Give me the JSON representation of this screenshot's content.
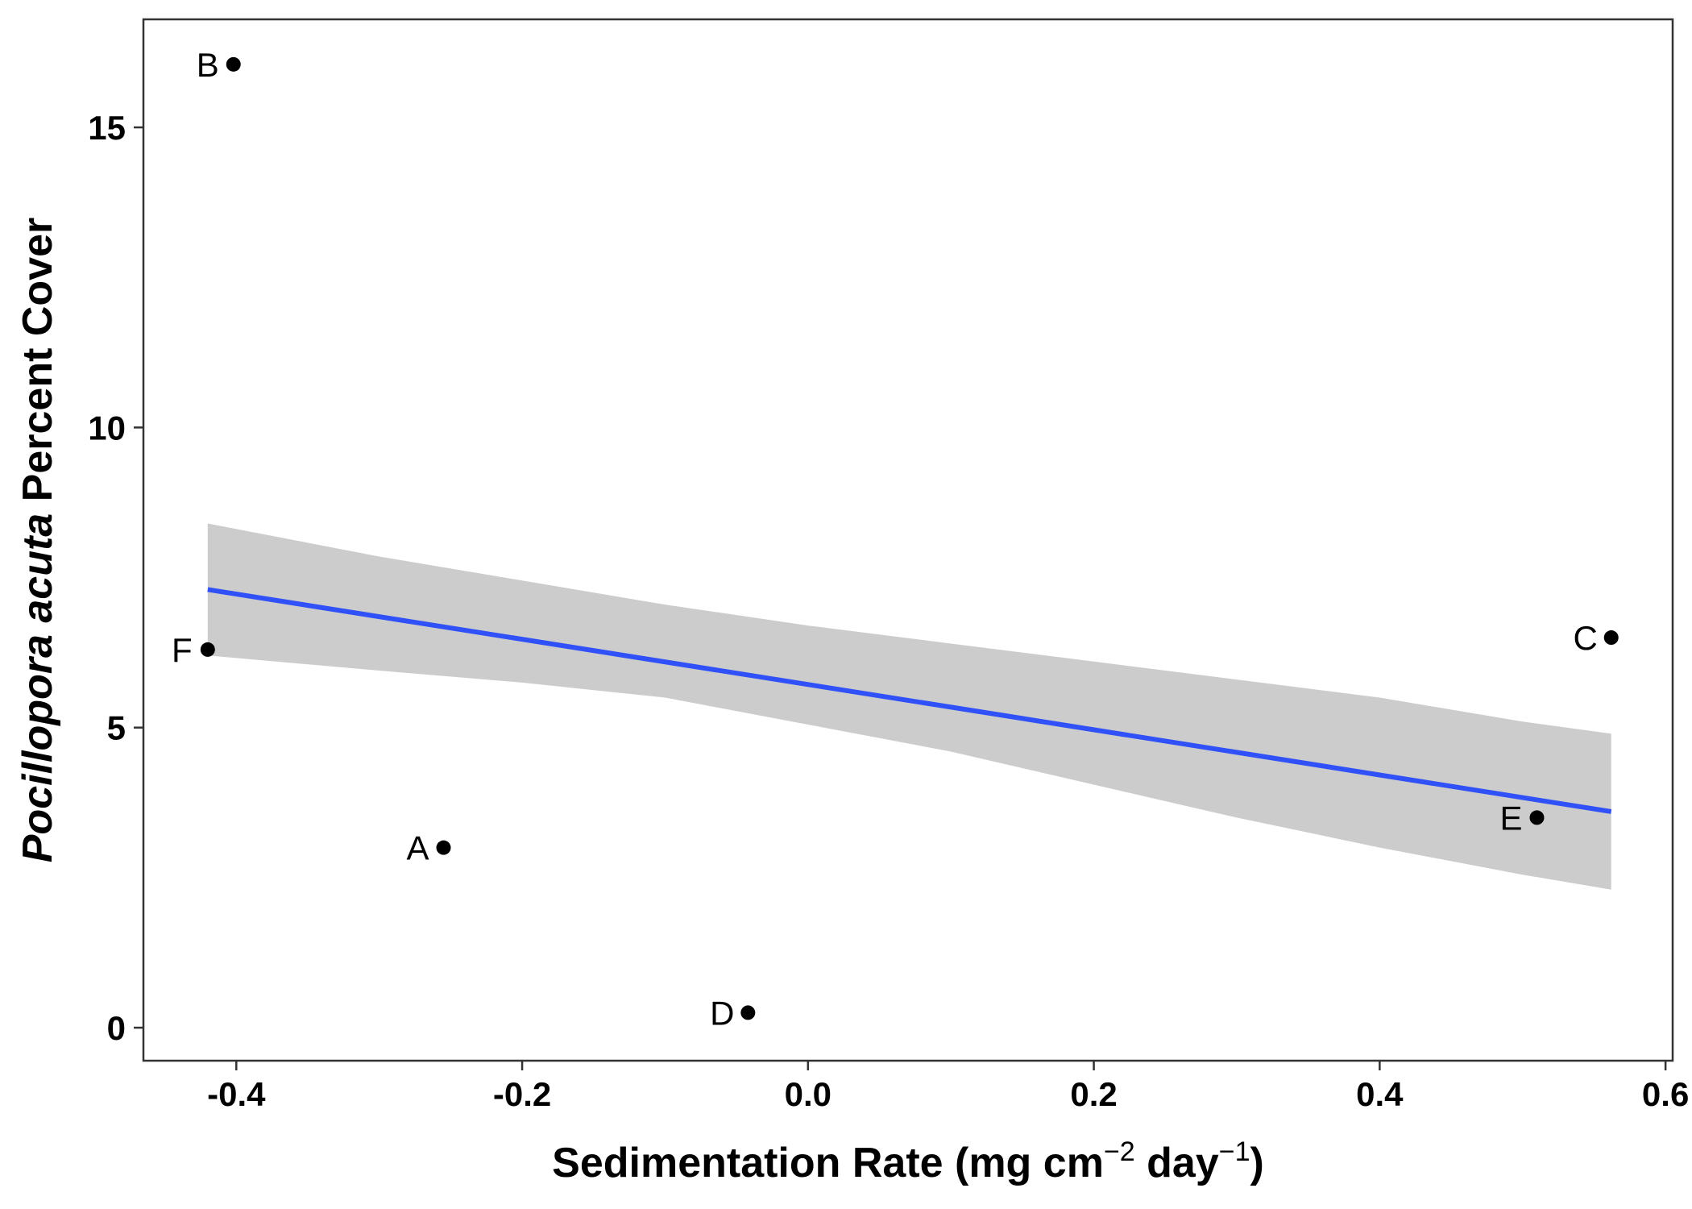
{
  "chart_data": {
    "type": "scatter",
    "xlabel": {
      "pre": "Sedimentation Rate (mg cm",
      "sup1": "−2",
      "mid": " day",
      "sup2": "−1",
      "post": ")"
    },
    "ylabel": {
      "italic": "Pocillopora acuta",
      "rest": " Percent Cover"
    },
    "xlim": [
      -0.465,
      0.605
    ],
    "ylim": [
      -0.55,
      16.8
    ],
    "x_ticks": [
      -0.4,
      -0.2,
      0.0,
      0.2,
      0.4,
      0.6
    ],
    "x_tick_labels": [
      "-0.4",
      "-0.2",
      "0.0",
      "0.2",
      "0.4",
      "0.6"
    ],
    "y_ticks": [
      0,
      5,
      10,
      15
    ],
    "y_tick_labels": [
      "0",
      "5",
      "10",
      "15"
    ],
    "grid": false,
    "points": [
      {
        "label": "A",
        "x": -0.255,
        "y": 3.0
      },
      {
        "label": "B",
        "x": -0.402,
        "y": 16.05
      },
      {
        "label": "C",
        "x": 0.562,
        "y": 6.5
      },
      {
        "label": "D",
        "x": -0.042,
        "y": 0.25
      },
      {
        "label": "E",
        "x": 0.51,
        "y": 3.5
      },
      {
        "label": "F",
        "x": -0.42,
        "y": 6.3
      }
    ],
    "trend_line": {
      "x": [
        -0.42,
        0.562
      ],
      "y": [
        7.3,
        3.6
      ],
      "color": "#3050F8"
    },
    "confidence_band": {
      "x": [
        -0.42,
        -0.3,
        -0.2,
        -0.1,
        0.0,
        0.1,
        0.2,
        0.3,
        0.4,
        0.5,
        0.562
      ],
      "upper": [
        8.4,
        7.85,
        7.45,
        7.05,
        6.7,
        6.4,
        6.1,
        5.8,
        5.5,
        5.1,
        4.9
      ],
      "lower": [
        6.2,
        5.95,
        5.75,
        5.5,
        5.05,
        4.6,
        4.05,
        3.5,
        3.0,
        2.55,
        2.3
      ],
      "color": "#CCCCCC"
    },
    "point_color": "#000000"
  }
}
